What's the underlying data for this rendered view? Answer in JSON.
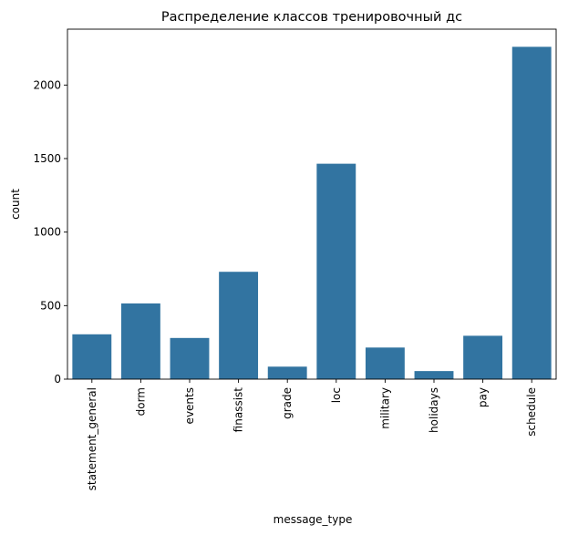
{
  "chart_data": {
    "type": "bar",
    "title": "Распределение классов тренировочный дс",
    "xlabel": "message_type",
    "ylabel": "count",
    "categories": [
      "statement_general",
      "dorm",
      "events",
      "finassist",
      "grade",
      "loc",
      "military",
      "holidays",
      "pay",
      "schedule"
    ],
    "values": [
      305,
      515,
      280,
      730,
      85,
      1465,
      215,
      55,
      295,
      2260
    ],
    "yticks": [
      0,
      500,
      1000,
      1500,
      2000
    ],
    "ylim": [
      0,
      2380
    ],
    "grid": false,
    "bar_color": "#3274a1"
  }
}
